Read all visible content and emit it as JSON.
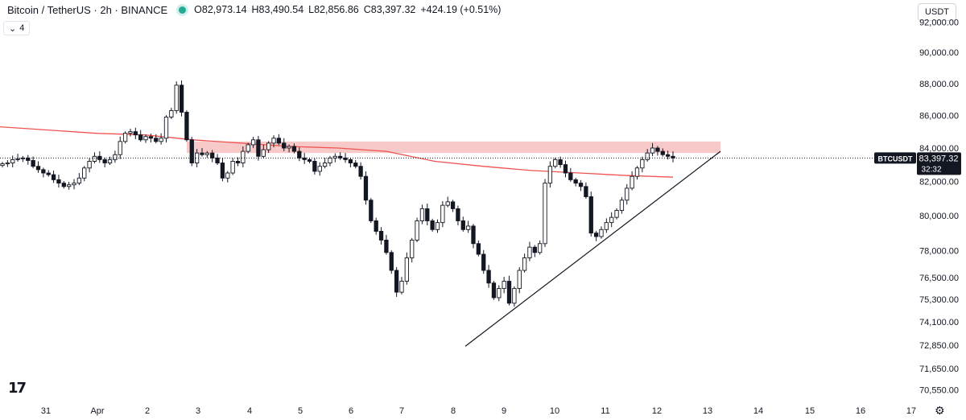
{
  "header": {
    "title": "Bitcoin / TetherUS · 2h · BINANCE",
    "open_label": "O",
    "open": "82,973.14",
    "high_label": "H",
    "high": "83,490.54",
    "low_label": "L",
    "low": "82,856.86",
    "close_label": "C",
    "close": "83,397.32",
    "change": "+424.19 (+0.51%)"
  },
  "indicator_button": {
    "chevron": "⌄",
    "count": "4"
  },
  "currency_button": "USDT",
  "settings_icon": "settings-gear-icon",
  "colors": {
    "up": "#131722",
    "down": "#131722",
    "ma": "#ef5350",
    "zone": "#f7c6c6",
    "trendline": "#131722"
  },
  "chart_data": {
    "type": "candlestick",
    "symbol": "BTCUSDT",
    "price_scale": "log",
    "price_axis_ticks": [
      "92,000.00",
      "90,000.00",
      "88,000.00",
      "86,000.00",
      "84,000.00",
      "82,000.00",
      "80,000.00",
      "78,000.00",
      "76,500.00",
      "75,300.00",
      "74,100.00",
      "72,850.00",
      "71,650.00",
      "70,550.00"
    ],
    "time_axis_ticks": [
      "31",
      "Apr",
      "2",
      "3",
      "4",
      "5",
      "6",
      "7",
      "8",
      "9",
      "10",
      "11",
      "12",
      "13",
      "14",
      "15",
      "16",
      "17"
    ],
    "last_price_label": {
      "symbol": "BTCUSDT",
      "price": "83,397.32",
      "countdown": "32:32"
    },
    "candles_close": [
      83050,
      83100,
      83300,
      83350,
      83400,
      83250,
      82900,
      82700,
      82500,
      82400,
      82100,
      81900,
      81700,
      81800,
      81900,
      82200,
      82800,
      83200,
      83500,
      83300,
      83100,
      83300,
      83600,
      84400,
      84900,
      85000,
      84800,
      84500,
      84700,
      84600,
      84400,
      84600,
      85900,
      86300,
      87900,
      86200,
      84500,
      83100,
      83700,
      83600,
      83700,
      83400,
      83100,
      82200,
      82500,
      83200,
      83100,
      83800,
      84200,
      84500,
      83500,
      83900,
      84300,
      84600,
      84300,
      84000,
      84100,
      83800,
      83400,
      83300,
      83200,
      82600,
      82900,
      83100,
      83400,
      83500,
      83400,
      83300,
      83100,
      82900,
      82300,
      80900,
      79700,
      79100,
      78600,
      77900,
      76900,
      75700,
      76300,
      77600,
      78600,
      79700,
      80400,
      79700,
      79200,
      79600,
      80600,
      80800,
      80400,
      79700,
      79200,
      79400,
      78400,
      77800,
      76900,
      76200,
      75400,
      75900,
      76300,
      75100,
      75900,
      76900,
      77600,
      78200,
      77900,
      78400,
      81900,
      82900,
      83300,
      83000,
      82500,
      82100,
      81900,
      81700,
      81100,
      79000,
      78800,
      79200,
      79600,
      79900,
      80300,
      80900,
      81600,
      82300,
      82800,
      83300,
      83700,
      84000,
      83800,
      83600,
      83500,
      83400
    ],
    "moving_average": {
      "start": 85300,
      "end": 82250
    },
    "resistance_zone": {
      "low": 83700,
      "high": 84400,
      "start_day": "Apr 2",
      "end_day": "Apr 13"
    },
    "trendline": {
      "from": {
        "day": "Apr 8",
        "price": 72800
      },
      "to": {
        "day": "Apr 13",
        "price": 83800
      }
    }
  }
}
